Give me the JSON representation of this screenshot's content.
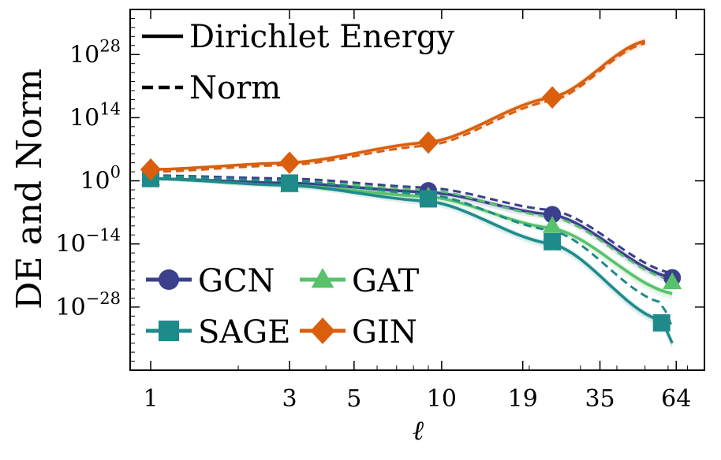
{
  "chart_data": {
    "type": "line",
    "title": "",
    "xlabel": "ℓ",
    "ylabel": "DE and Norm",
    "xscale": "log",
    "yscale": "log",
    "xlim": [
      0.85,
      80
    ],
    "ylim_exp": [
      -42,
      38
    ],
    "x_ticks": [
      1,
      3,
      5,
      10,
      19,
      35,
      64
    ],
    "y_ticks": [
      {
        "base": "10",
        "exp": "28",
        "value_exp": 28
      },
      {
        "base": "10",
        "exp": "14",
        "value_exp": 14
      },
      {
        "base": "10",
        "exp": "0",
        "value_exp": 0
      },
      {
        "base": "10",
        "exp": "−14",
        "value_exp": -14
      },
      {
        "base": "10",
        "exp": "−28",
        "value_exp": -28
      }
    ],
    "style_legend": {
      "position": "top-left",
      "entries": [
        {
          "label": "Dirichlet Energy",
          "linestyle": "solid"
        },
        {
          "label": "Norm",
          "linestyle": "dashed"
        }
      ]
    },
    "model_legend": {
      "position": "bottom-left",
      "entries": [
        "GCN",
        "GAT",
        "SAGE",
        "GIN"
      ]
    },
    "series": [
      {
        "name": "GCN",
        "color": "#3b3f8c",
        "marker": "circle",
        "x": [
          1,
          3,
          9,
          24,
          62
        ],
        "dirichlet_log10": [
          0.5,
          -0.5,
          -2.5,
          -7.5,
          -21.5
        ],
        "norm_log10": [
          1.2,
          0.5,
          -1.5,
          -6.5,
          -20.5
        ],
        "marker_x": [
          1,
          3,
          9,
          24,
          62
        ],
        "marker_log10": [
          0.5,
          -0.5,
          -2.2,
          -7.5,
          -21.5
        ]
      },
      {
        "name": "GAT",
        "color": "#58c16b",
        "marker": "triangle",
        "x": [
          1,
          3,
          9,
          24,
          62
        ],
        "dirichlet_log10": [
          0.5,
          -1.0,
          -3.5,
          -10.5,
          -25.0
        ],
        "norm_log10": [
          1.0,
          0.0,
          -2.0,
          -8.0,
          -22.0
        ],
        "marker_x": [
          1,
          3,
          9,
          24,
          62
        ],
        "marker_log10": [
          0.5,
          -1.0,
          -3.5,
          -10.0,
          -22.5
        ]
      },
      {
        "name": "SAGE",
        "color": "#1f8a8a",
        "marker": "square",
        "x": [
          1,
          3,
          9,
          24,
          57,
          62
        ],
        "dirichlet_log10": [
          0.5,
          -1.0,
          -4.5,
          -14.0,
          -31.0,
          -36.0
        ],
        "norm_log10": [
          1.0,
          0.0,
          -3.0,
          -11.0,
          -27.0,
          -32.5
        ],
        "marker_x": [
          1,
          3,
          9,
          24,
          57
        ],
        "marker_log10": [
          0.5,
          -0.5,
          -4.0,
          -13.5,
          -31.5
        ]
      },
      {
        "name": "GIN",
        "color": "#d95f0e",
        "marker": "diamond",
        "x": [
          1,
          3,
          9,
          24,
          50
        ],
        "dirichlet_log10": [
          2.5,
          4.0,
          8.5,
          18.5,
          31.0
        ],
        "norm_log10": [
          2.0,
          3.5,
          7.8,
          17.8,
          30.5
        ],
        "marker_x": [
          1,
          3,
          9,
          24
        ],
        "marker_log10": [
          2.5,
          4.0,
          8.5,
          18.5
        ]
      }
    ]
  }
}
